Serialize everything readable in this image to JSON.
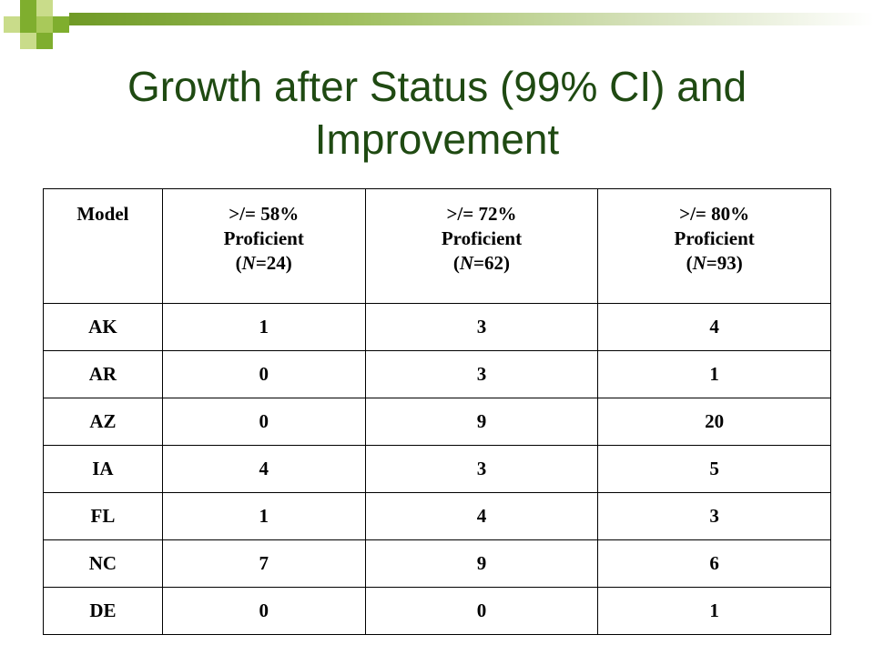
{
  "title": "Growth after Status (99% CI) and Improvement",
  "table": {
    "headers": [
      {
        "label": "Model"
      },
      {
        "line1": ">/= 58%",
        "line2": "Proficient",
        "n_prefix": "(",
        "n_italic": "N",
        "n_suffix": "=24)"
      },
      {
        "line1": ">/= 72%",
        "line2": "Proficient",
        "n_prefix": "(",
        "n_italic": "N",
        "n_suffix": "=62)"
      },
      {
        "line1": ">/= 80%",
        "line2": "Proficient",
        "n_prefix": "(",
        "n_italic": "N",
        "n_suffix": "=93)"
      }
    ],
    "rows": [
      [
        "AK",
        "1",
        "3",
        "4"
      ],
      [
        "AR",
        "0",
        "3",
        "1"
      ],
      [
        "AZ",
        "0",
        "9",
        "20"
      ],
      [
        "IA",
        "4",
        "3",
        "5"
      ],
      [
        "FL",
        "1",
        "4",
        "3"
      ],
      [
        "NC",
        "7",
        "9",
        "6"
      ],
      [
        "DE",
        "0",
        "0",
        "1"
      ]
    ]
  },
  "colors": {
    "title": "#1f4a12",
    "accent_dark": "#7fae2e",
    "accent_light": "#c9dc8a"
  }
}
